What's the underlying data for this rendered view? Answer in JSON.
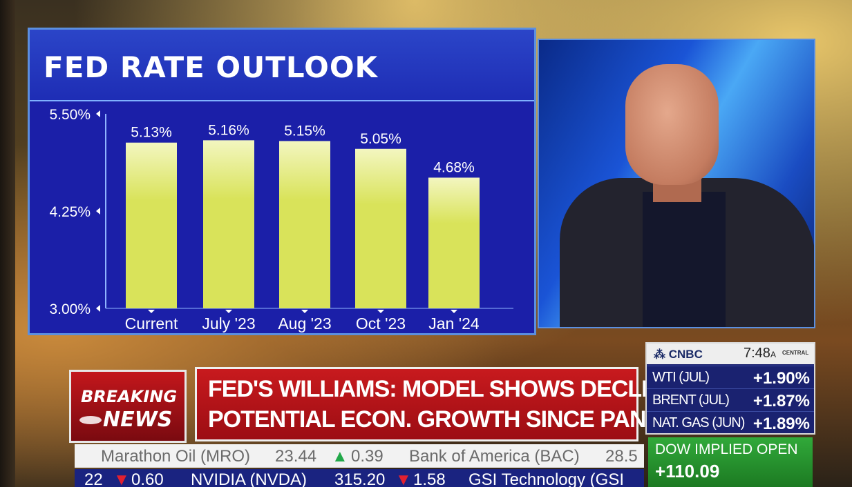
{
  "chart_data": {
    "type": "bar",
    "title": "FED RATE OUTLOOK",
    "categories": [
      "Current",
      "July '23",
      "Aug '23",
      "Oct '23",
      "Jan '24"
    ],
    "values": [
      5.13,
      5.16,
      5.15,
      5.05,
      4.68
    ],
    "value_labels": [
      "5.13%",
      "5.16%",
      "5.15%",
      "5.05%",
      "4.68%"
    ],
    "yticks": [
      3.0,
      4.25,
      5.5
    ],
    "ytick_labels": [
      "3.00%",
      "4.25%",
      "5.50%"
    ],
    "ylim": [
      3.0,
      5.5
    ],
    "xlabel": "",
    "ylabel": "",
    "bar_color": "#d9e35a",
    "bar_highlight_color": "#f3f6c0"
  },
  "breaking": {
    "line1": "BREAKING",
    "line2": "NEWS"
  },
  "headline": {
    "line1": "FED'S WILLIAMS: MODEL SHOWS DECLINE IN",
    "line2": "POTENTIAL ECON. GROWTH SINCE PANDEMIC"
  },
  "market": {
    "network": "CNBC",
    "time": "7:48",
    "ampm": "A",
    "zone": "CENTRAL",
    "rows": [
      {
        "name": "WTI (JUL)",
        "value": "+1.90%"
      },
      {
        "name": "BRENT (JUL)",
        "value": "+1.87%"
      },
      {
        "name": "NAT. GAS (JUN)",
        "value": "+1.89%"
      }
    ]
  },
  "dow": {
    "label": "DOW IMPLIED OPEN",
    "value": "+110.09"
  },
  "ticker_top": {
    "item1_name": "Marathon Oil (MRO)",
    "item1_price": "23.44",
    "item1_arrow": "▲",
    "item1_change": "0.39",
    "item2_name": "Bank of America (BAC)",
    "item2_price": "28.5"
  },
  "ticker_bottom": {
    "item0_price": "22",
    "item0_arrow": "▼",
    "item0_change": "0.60",
    "item1_name": "NVIDIA (NVDA)",
    "item1_price": "315.20",
    "item1_arrow": "▼",
    "item1_change": "1.58",
    "item2_name": "GSI Technology (GSI"
  },
  "colors": {
    "chart_bg": "#1b1fa8",
    "breaking_red": "#c3171c",
    "dow_green": "#31a93a",
    "market_navy": "#1a2270"
  }
}
